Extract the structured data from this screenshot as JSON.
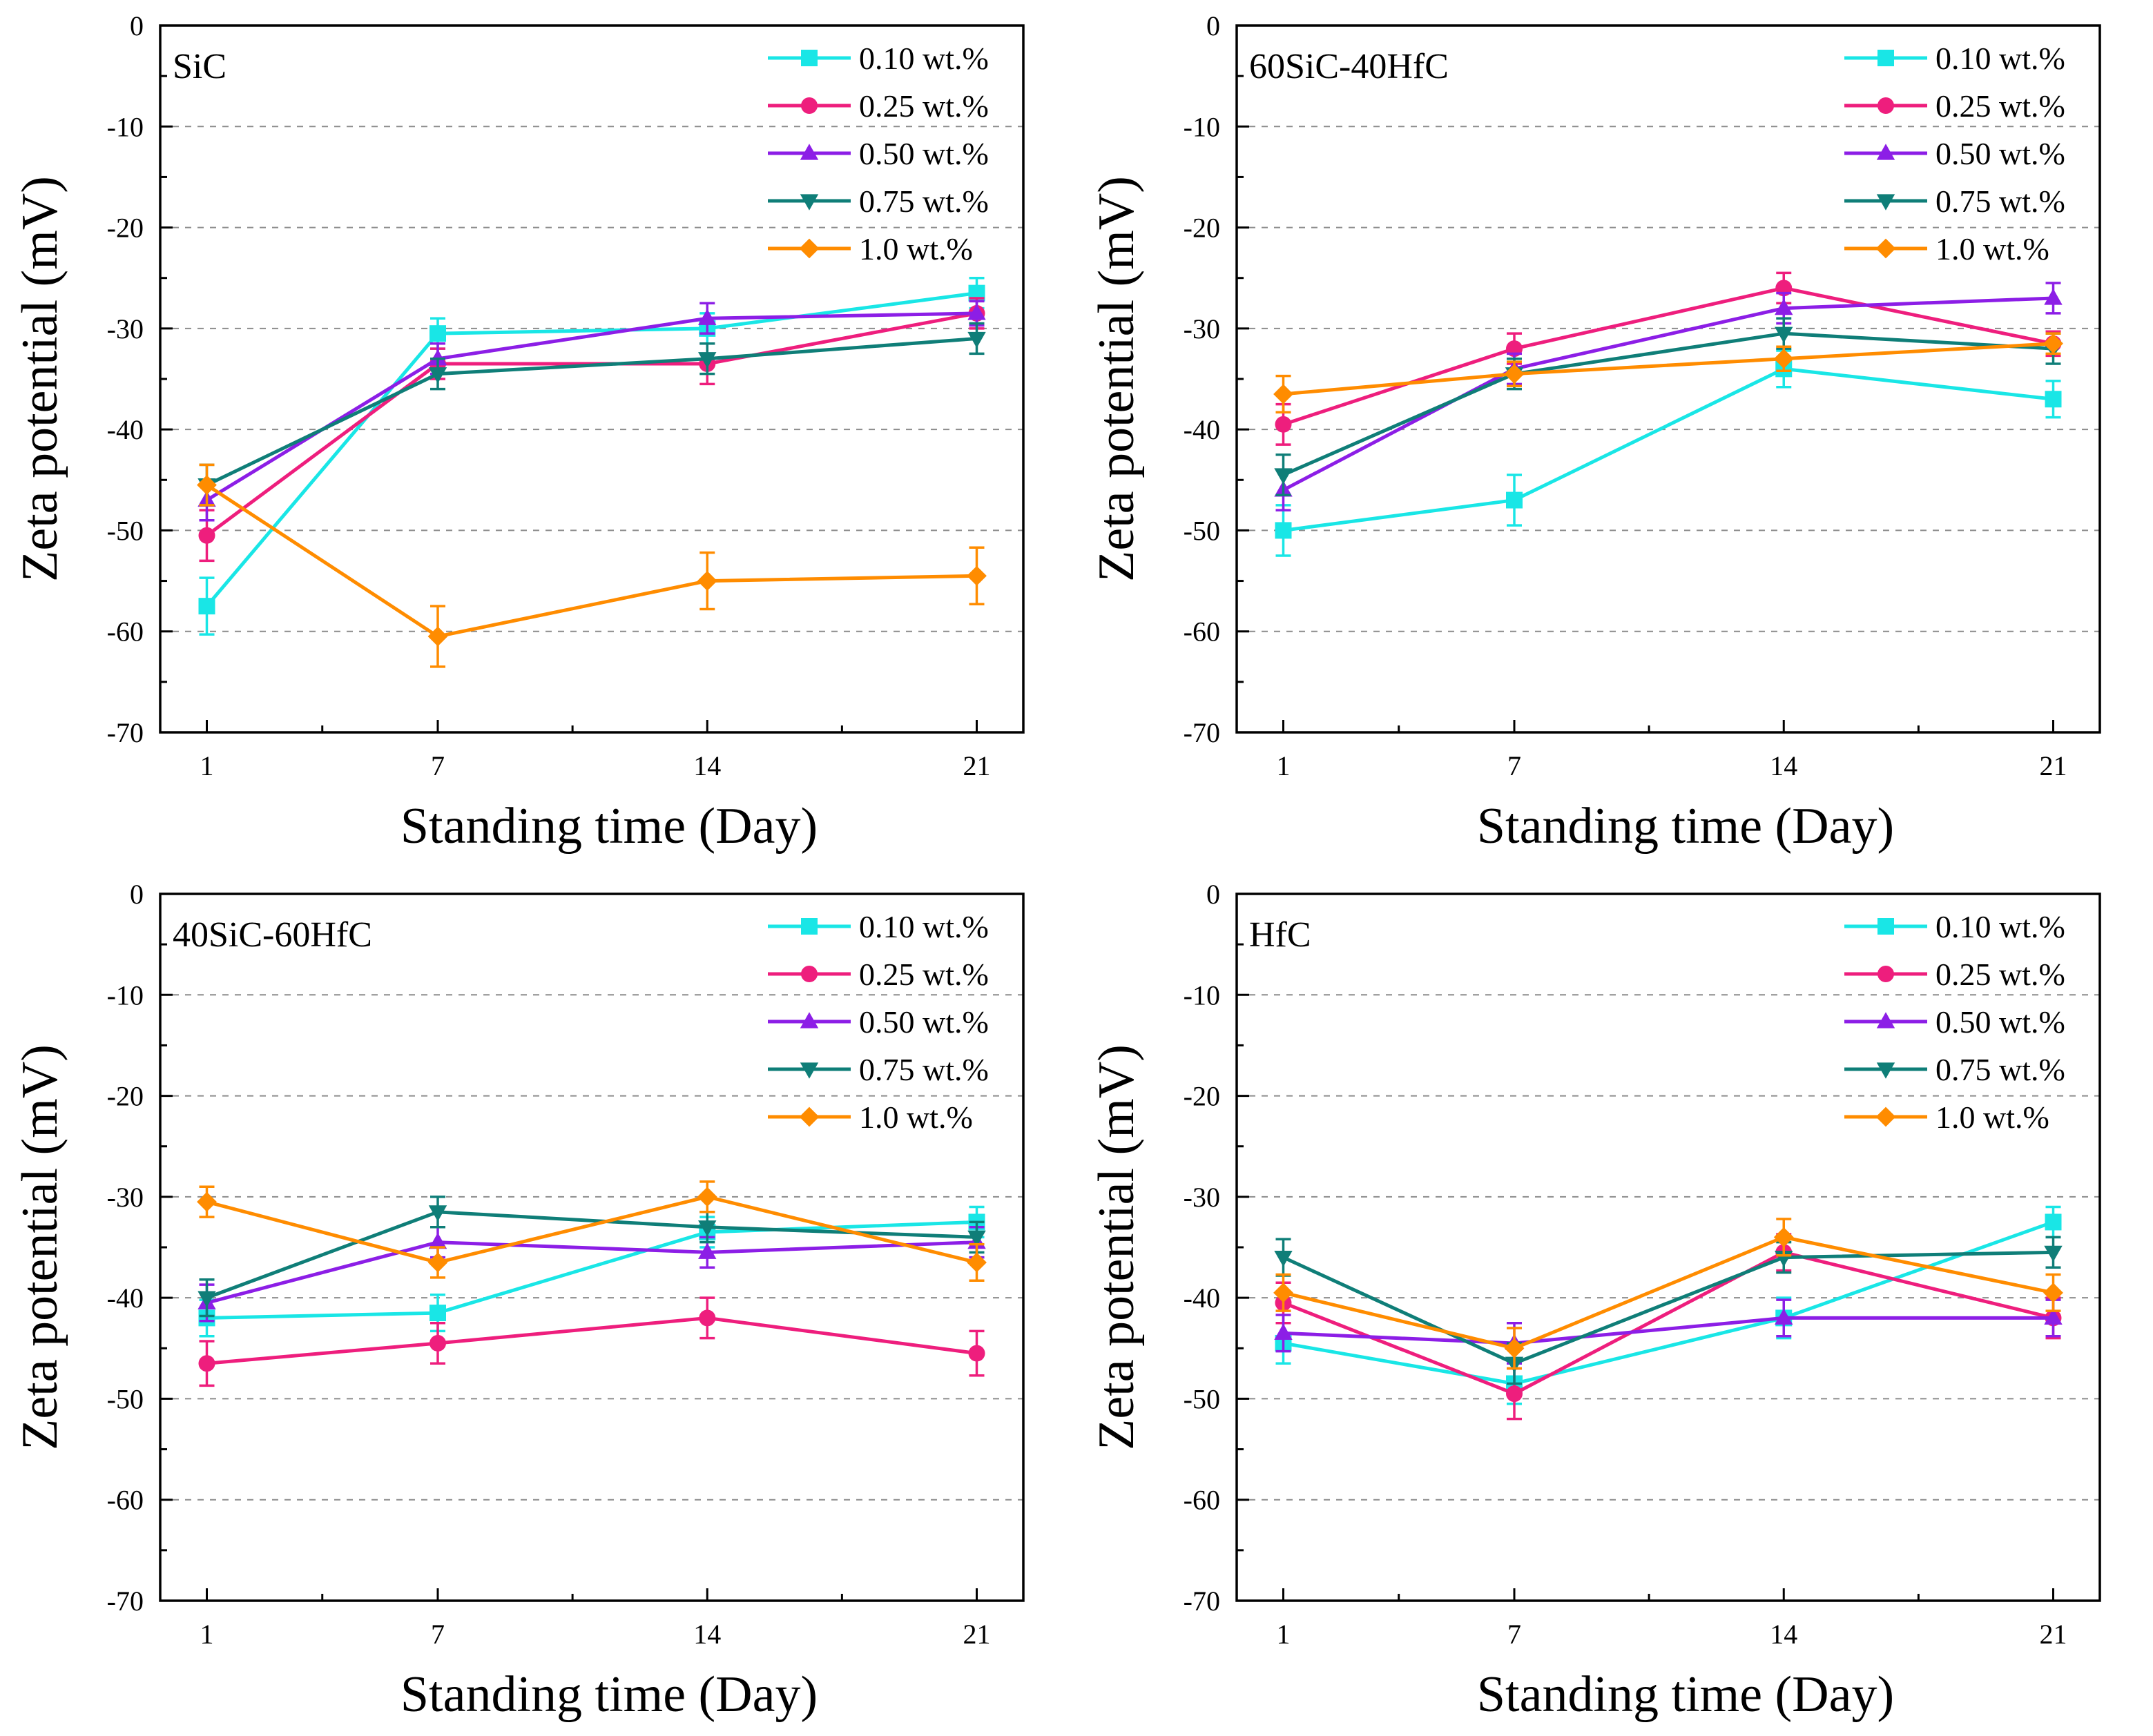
{
  "figure": {
    "x_label": "Standing time (Day)",
    "y_label": "Zeta potential (mV)"
  },
  "series_styles": [
    {
      "name": "0.10 wt.%",
      "color": "#19e6e6",
      "marker": "square"
    },
    {
      "name": "0.25 wt.%",
      "color": "#ee1e7d",
      "marker": "circle"
    },
    {
      "name": "0.50 wt.%",
      "color": "#8c1ee6",
      "marker": "triangle-up"
    },
    {
      "name": "0.75 wt.%",
      "color": "#0f7e78",
      "marker": "triangle-down"
    },
    {
      "name": "1.0 wt.%",
      "color": "#ff8c00",
      "marker": "diamond"
    }
  ],
  "chart_data": [
    {
      "type": "line",
      "title": "SiC",
      "xlabel": "Standing time (Day)",
      "ylabel": "Zeta potential (mV)",
      "x": [
        1,
        7,
        14,
        21
      ],
      "x_ticks": [
        "1",
        "7",
        "14",
        "21"
      ],
      "ylim": [
        -70,
        0
      ],
      "y_ticks": [
        "0",
        "-10",
        "-20",
        "-30",
        "-40",
        "-50",
        "-60",
        "-70"
      ],
      "grid": true,
      "legend": "top-right",
      "series": [
        {
          "name": "0.10 wt.%",
          "values": [
            -57.5,
            -30.5,
            -30.0,
            -26.5
          ],
          "errors": [
            2.8,
            1.5,
            1.5,
            1.5
          ]
        },
        {
          "name": "0.25 wt.%",
          "values": [
            -50.5,
            -33.5,
            -33.5,
            -28.5
          ],
          "errors": [
            2.5,
            1.5,
            2.0,
            1.5
          ]
        },
        {
          "name": "0.50 wt.%",
          "values": [
            -47.0,
            -33.0,
            -29.0,
            -28.5
          ],
          "errors": [
            2.0,
            1.5,
            1.5,
            1.2
          ]
        },
        {
          "name": "0.75 wt.%",
          "values": [
            -45.5,
            -34.5,
            -33.0,
            -31.0
          ],
          "errors": [
            2.0,
            1.5,
            1.5,
            1.5
          ]
        },
        {
          "name": "1.0 wt.%",
          "values": [
            -45.5,
            -60.5,
            -55.0,
            -54.5
          ],
          "errors": [
            2.0,
            3.0,
            2.8,
            2.8
          ]
        }
      ]
    },
    {
      "type": "line",
      "title": "60SiC-40HfC",
      "xlabel": "Standing time (Day)",
      "ylabel": "Zeta potential (mV)",
      "x": [
        1,
        7,
        14,
        21
      ],
      "x_ticks": [
        "1",
        "7",
        "14",
        "21"
      ],
      "ylim": [
        -70,
        0
      ],
      "y_ticks": [
        "0",
        "-10",
        "-20",
        "-30",
        "-40",
        "-50",
        "-60",
        "-70"
      ],
      "grid": true,
      "legend": "top-right",
      "series": [
        {
          "name": "0.10 wt.%",
          "values": [
            -50.0,
            -47.0,
            -34.0,
            -37.0
          ],
          "errors": [
            2.5,
            2.5,
            1.8,
            1.8
          ]
        },
        {
          "name": "0.25 wt.%",
          "values": [
            -39.5,
            -32.0,
            -26.0,
            -31.5
          ],
          "errors": [
            2.0,
            1.5,
            1.5,
            1.2
          ]
        },
        {
          "name": "0.50 wt.%",
          "values": [
            -46.0,
            -34.0,
            -28.0,
            -27.0
          ],
          "errors": [
            2.0,
            1.5,
            1.5,
            1.5
          ]
        },
        {
          "name": "0.75 wt.%",
          "values": [
            -44.5,
            -34.5,
            -30.5,
            -32.0
          ],
          "errors": [
            2.0,
            1.5,
            1.5,
            1.5
          ]
        },
        {
          "name": "1.0 wt.%",
          "values": [
            -36.5,
            -34.5,
            -33.0,
            -31.5
          ],
          "errors": [
            1.8,
            1.2,
            1.2,
            1.0
          ]
        }
      ]
    },
    {
      "type": "line",
      "title": "40SiC-60HfC",
      "xlabel": "Standing time (Day)",
      "ylabel": "Zeta potential (mV)",
      "x": [
        1,
        7,
        14,
        21
      ],
      "x_ticks": [
        "1",
        "7",
        "14",
        "21"
      ],
      "ylim": [
        -70,
        0
      ],
      "y_ticks": [
        "0",
        "-10",
        "-20",
        "-30",
        "-40",
        "-50",
        "-60",
        "-70"
      ],
      "grid": true,
      "legend": "top-right",
      "series": [
        {
          "name": "0.10 wt.%",
          "values": [
            -42.0,
            -41.5,
            -33.5,
            -32.5
          ],
          "errors": [
            1.8,
            1.8,
            1.5,
            1.5
          ]
        },
        {
          "name": "0.25 wt.%",
          "values": [
            -46.5,
            -44.5,
            -42.0,
            -45.5
          ],
          "errors": [
            2.2,
            2.0,
            2.0,
            2.2
          ]
        },
        {
          "name": "0.50 wt.%",
          "values": [
            -40.5,
            -34.5,
            -35.5,
            -34.5
          ],
          "errors": [
            1.8,
            1.5,
            1.5,
            1.5
          ]
        },
        {
          "name": "0.75 wt.%",
          "values": [
            -40.0,
            -31.5,
            -33.0,
            -34.0
          ],
          "errors": [
            1.8,
            1.5,
            1.5,
            1.5
          ]
        },
        {
          "name": "1.0 wt.%",
          "values": [
            -30.5,
            -36.5,
            -30.0,
            -36.5
          ],
          "errors": [
            1.5,
            1.5,
            1.5,
            1.8
          ]
        }
      ]
    },
    {
      "type": "line",
      "title": "HfC",
      "xlabel": "Standing time (Day)",
      "ylabel": "Zeta potential (mV)",
      "x": [
        1,
        7,
        14,
        21
      ],
      "x_ticks": [
        "1",
        "7",
        "14",
        "21"
      ],
      "ylim": [
        -70,
        0
      ],
      "y_ticks": [
        "0",
        "-10",
        "-20",
        "-30",
        "-40",
        "-50",
        "-60",
        "-70"
      ],
      "grid": true,
      "legend": "top-right",
      "series": [
        {
          "name": "0.10 wt.%",
          "values": [
            -44.5,
            -48.5,
            -42.0,
            -32.5
          ],
          "errors": [
            2.0,
            2.0,
            2.0,
            1.5
          ]
        },
        {
          "name": "0.25 wt.%",
          "values": [
            -40.5,
            -49.5,
            -35.5,
            -42.0
          ],
          "errors": [
            2.0,
            2.5,
            1.8,
            2.0
          ]
        },
        {
          "name": "0.50 wt.%",
          "values": [
            -43.5,
            -44.5,
            -42.0,
            -42.0
          ],
          "errors": [
            1.8,
            2.0,
            1.8,
            1.8
          ]
        },
        {
          "name": "0.75 wt.%",
          "values": [
            -36.0,
            -46.5,
            -36.0,
            -35.5
          ],
          "errors": [
            1.8,
            2.0,
            1.5,
            1.5
          ]
        },
        {
          "name": "1.0 wt.%",
          "values": [
            -39.5,
            -45.0,
            -34.0,
            -39.5
          ],
          "errors": [
            1.8,
            2.0,
            1.8,
            1.8
          ]
        }
      ]
    }
  ]
}
